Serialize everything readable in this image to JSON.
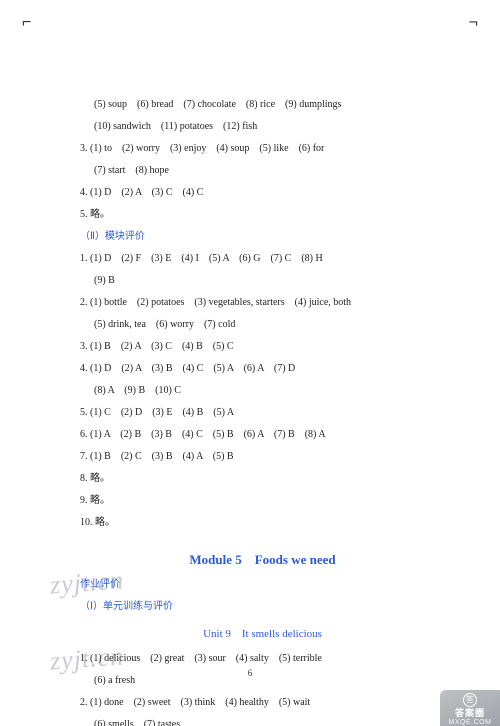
{
  "crop": {
    "tl": "⌐",
    "tr": "¬",
    "br": "⌐"
  },
  "lines": {
    "l1": "(5) soup　(6) bread　(7) chocolate　(8) rice　(9) dumplings",
    "l2": "(10) sandwich　(11) potatoes　(12) fish",
    "l3": "3. (1) to　(2) worry　(3) enjoy　(4) soup　(5) like　(6) for",
    "l4": "(7) start　(8) hope",
    "l5": "4. (1) D　(2) A　(3) C　(4) C",
    "l6": "5. 略。",
    "l7": "（Ⅱ）模块评价",
    "l8": "1. (1) D　(2) F　(3) E　(4) I　(5) A　(6) G　(7) C　(8) H",
    "l9": "(9) B",
    "l10": "2. (1) bottle　(2) potatoes　(3) vegetables, starters　(4) juice, both",
    "l11": "(5) drink, tea　(6) worry　(7) cold",
    "l12": "3. (1) B　(2) A　(3) C　(4) B　(5) C",
    "l13": "4. (1) D　(2) A　(3) B　(4) C　(5) A　(6) A　(7) D",
    "l14": "(8) A　(9) B　(10) C",
    "l15": "5. (1) C　(2) D　(3) E　(4) B　(5) A",
    "l16": "6. (1) A　(2) B　(3) B　(4) C　(5) B　(6) A　(7) B　(8) A",
    "l17": "7. (1) B　(2) C　(3) B　(4) A　(5) B",
    "l18": "8. 略。",
    "l19": "9. 略。",
    "l20": "10. 略。"
  },
  "module_title": "Module 5　Foods we need",
  "sub1": "作业评价",
  "sub2": "（Ⅰ）单元训练与评价",
  "unit_title": "Unit 9　It smells delicious",
  "unit_lines": {
    "u1": "1. (1) delicious　(2) great　(3) sour　(4) salty　(5) terrible",
    "u2": "(6) a fresh",
    "u3": "2. (1) done　(2) sweet　(3) think　(4) healthy　(5) wait",
    "u4": "(6) smells　(7) tastes"
  },
  "watermark": "zyjt.cn",
  "page_number": "6",
  "badge": {
    "top": "答案圈",
    "symbol": "答",
    "bottom": "MXQE.COM"
  }
}
